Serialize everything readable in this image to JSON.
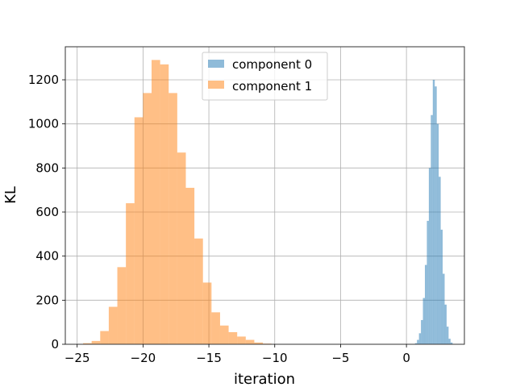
{
  "chart_data": {
    "type": "bar",
    "title": "",
    "xlabel": "iteration",
    "ylabel": "KL",
    "xlim": [
      -25.9,
      4.4
    ],
    "ylim": [
      0,
      1350
    ],
    "xticks": [
      -25,
      -20,
      -15,
      -10,
      -5,
      0
    ],
    "xtick_labels": [
      "−25",
      "−20",
      "−15",
      "−10",
      "−5",
      "0"
    ],
    "yticks": [
      0,
      200,
      400,
      600,
      800,
      1000,
      1200
    ],
    "ytick_labels": [
      "0",
      "200",
      "400",
      "600",
      "800",
      "1000",
      "1200"
    ],
    "grid": true,
    "legend_position": "top-center",
    "series": [
      {
        "name": "component 0",
        "color": "#1f77b4",
        "opacity": 0.5,
        "bins": [
          [
            0.65,
            0.8,
            5
          ],
          [
            0.8,
            0.95,
            20
          ],
          [
            0.95,
            1.1,
            50
          ],
          [
            1.1,
            1.25,
            110
          ],
          [
            1.25,
            1.4,
            210
          ],
          [
            1.4,
            1.55,
            360
          ],
          [
            1.55,
            1.7,
            560
          ],
          [
            1.7,
            1.85,
            800
          ],
          [
            1.85,
            2.0,
            1040
          ],
          [
            2.0,
            2.15,
            1200
          ],
          [
            2.15,
            2.3,
            1170
          ],
          [
            2.3,
            2.45,
            1000
          ],
          [
            2.45,
            2.6,
            760
          ],
          [
            2.6,
            2.75,
            520
          ],
          [
            2.75,
            2.9,
            320
          ],
          [
            2.9,
            3.05,
            180
          ],
          [
            3.05,
            3.2,
            80
          ],
          [
            3.2,
            3.35,
            25
          ],
          [
            3.35,
            3.5,
            8
          ]
        ]
      },
      {
        "name": "component 1",
        "color": "#ff7f0e",
        "opacity": 0.5,
        "bins": [
          [
            -24.55,
            -23.9,
            5
          ],
          [
            -23.9,
            -23.25,
            15
          ],
          [
            -23.25,
            -22.6,
            60
          ],
          [
            -22.6,
            -21.95,
            170
          ],
          [
            -21.95,
            -21.3,
            350
          ],
          [
            -21.3,
            -20.65,
            640
          ],
          [
            -20.65,
            -20.0,
            1030
          ],
          [
            -20.0,
            -19.35,
            1140
          ],
          [
            -19.35,
            -18.7,
            1290
          ],
          [
            -18.7,
            -18.05,
            1270
          ],
          [
            -18.05,
            -17.4,
            1140
          ],
          [
            -17.4,
            -16.75,
            870
          ],
          [
            -16.75,
            -16.1,
            710
          ],
          [
            -16.1,
            -15.45,
            480
          ],
          [
            -15.45,
            -14.8,
            280
          ],
          [
            -14.8,
            -14.15,
            145
          ],
          [
            -14.15,
            -13.5,
            85
          ],
          [
            -13.5,
            -12.85,
            55
          ],
          [
            -12.85,
            -12.2,
            35
          ],
          [
            -12.2,
            -11.55,
            20
          ],
          [
            -11.55,
            -10.9,
            8
          ],
          [
            -10.9,
            -10.25,
            3
          ]
        ]
      }
    ]
  }
}
